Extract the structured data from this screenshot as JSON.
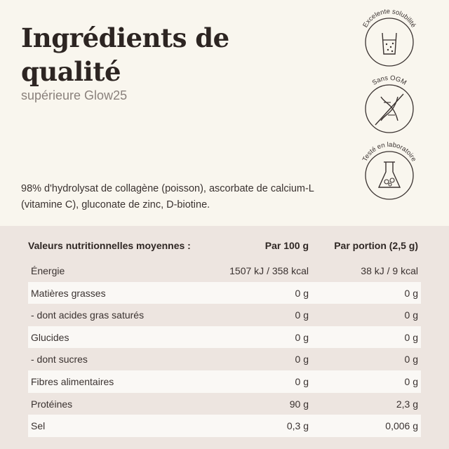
{
  "title": "Ingrédients de qualité",
  "subtitle": "supérieure Glow25",
  "ingredients": "98% d'hydrolysat de collagène (poisson), ascorbate de calcium-L (vitamine C), gluconate de zinc, D-biotine.",
  "badges": [
    {
      "label": "Excelente solubilité",
      "icon": "glass-icon"
    },
    {
      "label": "Sans OGM",
      "icon": "no-gmo-dna-icon"
    },
    {
      "label": "Testé en laboratoire",
      "icon": "lab-flask-icon"
    }
  ],
  "nutrition": {
    "header": {
      "label": "Valeurs nutritionnelles moyennes :",
      "per100": "Par 100 g",
      "perPortion": "Par portion (2,5 g)"
    },
    "rows": [
      {
        "label": "Énergie",
        "per100": "1507 kJ / 358 kcal",
        "perPortion": "38 kJ / 9 kcal"
      },
      {
        "label": "Matières grasses",
        "per100": "0 g",
        "perPortion": "0 g"
      },
      {
        "label": "- dont acides gras saturés",
        "per100": "0 g",
        "perPortion": "0 g"
      },
      {
        "label": "Glucides",
        "per100": "0 g",
        "perPortion": "0 g"
      },
      {
        "label": "- dont sucres",
        "per100": "0 g",
        "perPortion": "0 g"
      },
      {
        "label": "Fibres alimentaires",
        "per100": "0 g",
        "perPortion": "0 g"
      },
      {
        "label": "Protéines",
        "per100": "90 g",
        "perPortion": "2,3 g"
      },
      {
        "label": "Sel",
        "per100": "0,3 g",
        "perPortion": "0,006 g"
      }
    ]
  },
  "colors": {
    "background": "#f9f6ee",
    "table_background": "#ede5e0",
    "text": "#2f2724",
    "muted": "#8a817c"
  }
}
